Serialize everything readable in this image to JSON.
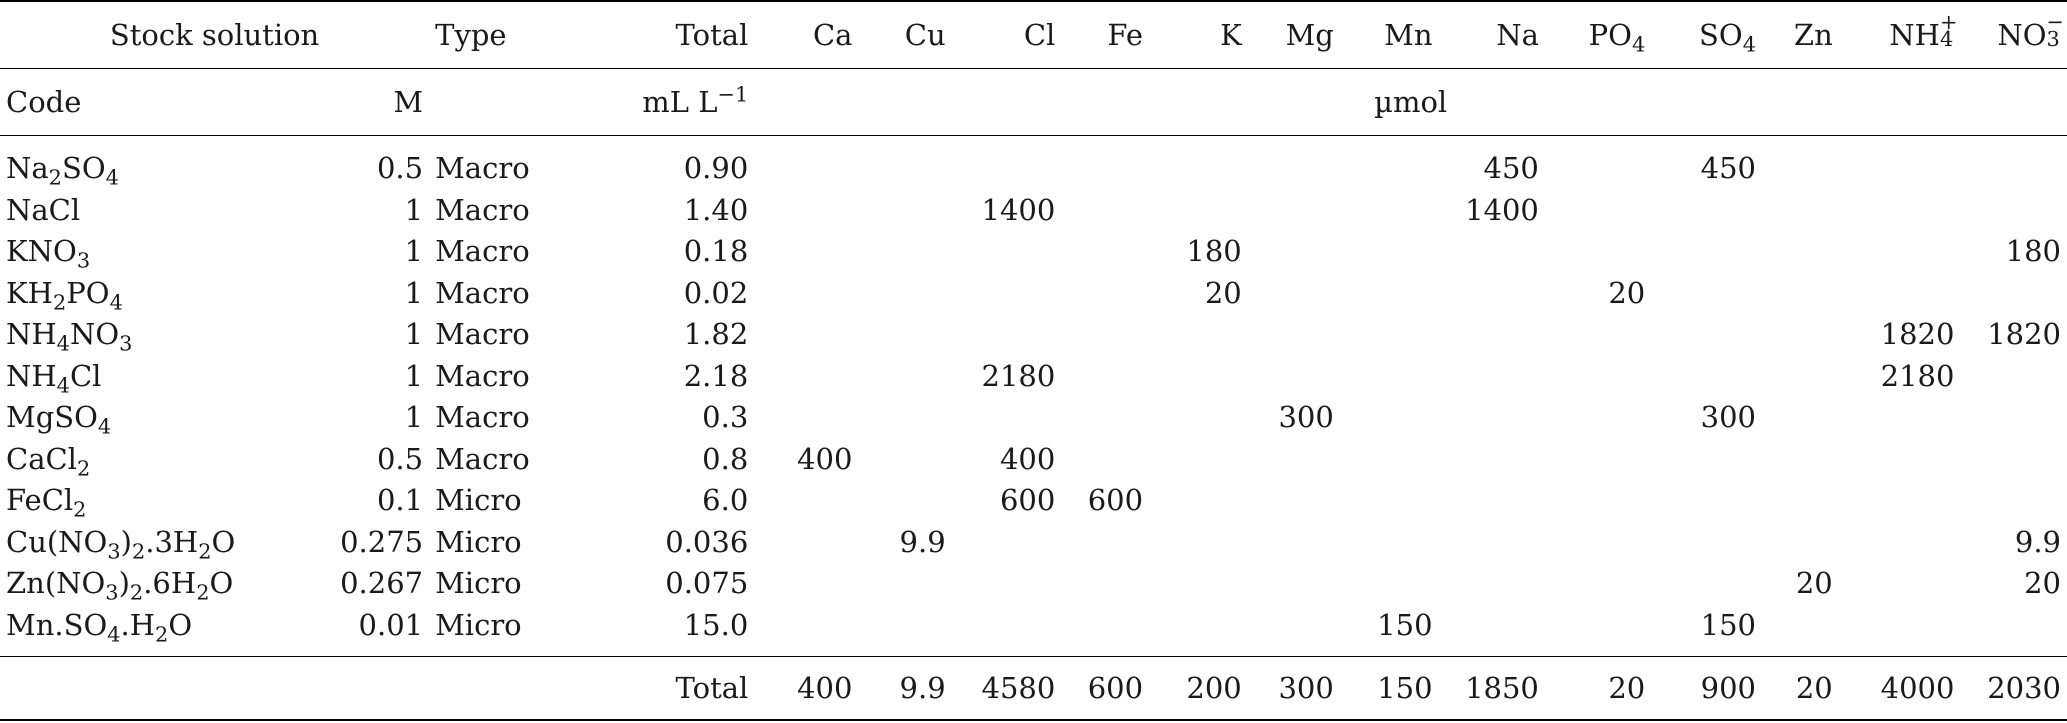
{
  "header": {
    "stock_solution": "Stock solution",
    "type": "Type",
    "total": "Total",
    "ions": [
      "Ca",
      "Cu",
      "Cl",
      "Fe",
      "K",
      "Mg",
      "Mn",
      "Na",
      "PO4",
      "SO4",
      "Zn",
      "NH4+",
      "NO3−"
    ]
  },
  "subheader": {
    "code": "Code",
    "molarity": "M",
    "ml_per_l": "mL L",
    "ml_exp": "−1",
    "umol": "µmol"
  },
  "rows": [
    {
      "code": "Na2SO4",
      "m": "0.5",
      "type": "Macro",
      "total": "0.90",
      "vals": [
        "",
        "",
        "",
        "",
        "",
        "",
        "",
        "450",
        "",
        "450",
        "",
        "",
        ""
      ]
    },
    {
      "code": "NaCl",
      "m": "1",
      "type": "Macro",
      "total": "1.40",
      "vals": [
        "",
        "",
        "1400",
        "",
        "",
        "",
        "",
        "1400",
        "",
        "",
        "",
        "",
        ""
      ]
    },
    {
      "code": "KNO3",
      "m": "1",
      "type": "Macro",
      "total": "0.18",
      "vals": [
        "",
        "",
        "",
        "",
        "180",
        "",
        "",
        "",
        "",
        "",
        "",
        "",
        "180"
      ]
    },
    {
      "code": "KH2PO4",
      "m": "1",
      "type": "Macro",
      "total": "0.02",
      "vals": [
        "",
        "",
        "",
        "",
        "20",
        "",
        "",
        "",
        "20",
        "",
        "",
        "",
        ""
      ]
    },
    {
      "code": "NH4NO3",
      "m": "1",
      "type": "Macro",
      "total": "1.82",
      "vals": [
        "",
        "",
        "",
        "",
        "",
        "",
        "",
        "",
        "",
        "",
        "",
        "1820",
        "1820"
      ]
    },
    {
      "code": "NH4Cl",
      "m": "1",
      "type": "Macro",
      "total": "2.18",
      "vals": [
        "",
        "",
        "2180",
        "",
        "",
        "",
        "",
        "",
        "",
        "",
        "",
        "2180",
        ""
      ]
    },
    {
      "code": "MgSO4",
      "m": "1",
      "type": "Macro",
      "total": "0.3",
      "vals": [
        "",
        "",
        "",
        "",
        "",
        "300",
        "",
        "",
        "",
        "300",
        "",
        "",
        ""
      ]
    },
    {
      "code": "CaCl2",
      "m": "0.5",
      "type": "Macro",
      "total": "0.8",
      "vals": [
        "400",
        "",
        "400",
        "",
        "",
        "",
        "",
        "",
        "",
        "",
        "",
        "",
        ""
      ]
    },
    {
      "code": "FeCl2",
      "m": "0.1",
      "type": "Micro",
      "total": "6.0",
      "vals": [
        "",
        "",
        "600",
        "600",
        "",
        "",
        "",
        "",
        "",
        "",
        "",
        "",
        ""
      ]
    },
    {
      "code": "Cu(NO3)2.3H2O",
      "m": "0.275",
      "type": "Micro",
      "total": "0.036",
      "vals": [
        "",
        "9.9",
        "",
        "",
        "",
        "",
        "",
        "",
        "",
        "",
        "",
        "",
        "9.9"
      ]
    },
    {
      "code": "Zn(NO3)2.6H2O",
      "m": "0.267",
      "type": "Micro",
      "total": "0.075",
      "vals": [
        "",
        "",
        "",
        "",
        "",
        "",
        "",
        "",
        "",
        "",
        "20",
        "",
        "20"
      ]
    },
    {
      "code": "Mn.SO4.H2O",
      "m": "0.01",
      "type": "Micro",
      "total": "15.0",
      "vals": [
        "",
        "",
        "",
        "",
        "",
        "",
        "150",
        "",
        "",
        "150",
        "",
        "",
        ""
      ]
    }
  ],
  "totals": {
    "label": "Total",
    "vals": [
      "400",
      "9.9",
      "4580",
      "600",
      "200",
      "300",
      "150",
      "1850",
      "20",
      "900",
      "20",
      "4000",
      "2030"
    ]
  }
}
